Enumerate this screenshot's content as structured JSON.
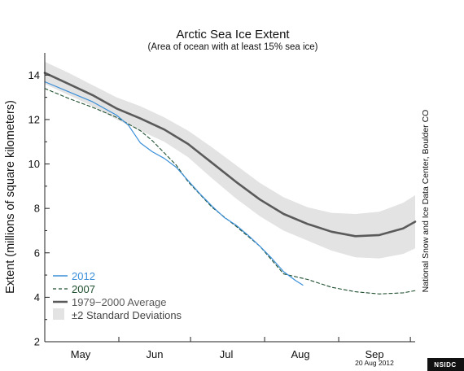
{
  "chart_data": {
    "type": "line",
    "title": "Arctic Sea Ice Extent",
    "subtitle": "(Area of ocean with at least 15% sea ice)",
    "ylabel": "Extent (millions of square kilometers)",
    "xlabel": "",
    "ylim": [
      2,
      15
    ],
    "xlim": [
      0,
      155
    ],
    "y_ticks": [
      2,
      4,
      6,
      8,
      10,
      12,
      14
    ],
    "x_tick_labels": [
      {
        "label": "May",
        "x": 15
      },
      {
        "label": "Jun",
        "x": 46
      },
      {
        "label": "Jul",
        "x": 76
      },
      {
        "label": "Aug",
        "x": 107
      },
      {
        "label": "Sep",
        "x": 138
      }
    ],
    "x_month_boundaries": [
      0,
      31,
      61,
      92,
      123,
      153
    ],
    "x_units": "days since May 1",
    "grid": false,
    "legend_position": "lower-left",
    "legend": [
      {
        "label": "2012",
        "color": "#3a8fd9",
        "style": "solid"
      },
      {
        "label": "2007",
        "color": "#1f4f2f",
        "style": "dashed"
      },
      {
        "label": "1979−2000 Average",
        "color": "#5a5a5a",
        "style": "thick"
      },
      {
        "label": "±2 Standard Deviations",
        "color": "#e3e3e3",
        "style": "band"
      }
    ],
    "series": [
      {
        "name": "1979−2000 Average",
        "color": "#5a5a5a",
        "x": [
          0,
          10,
          20,
          30,
          40,
          50,
          60,
          70,
          80,
          90,
          100,
          110,
          120,
          130,
          140,
          150,
          155
        ],
        "values": [
          14.1,
          13.6,
          13.1,
          12.5,
          12.05,
          11.55,
          10.9,
          10.05,
          9.2,
          8.4,
          7.75,
          7.3,
          6.95,
          6.75,
          6.8,
          7.1,
          7.4
        ]
      },
      {
        "name": "±2 Standard Deviations",
        "color": "#e3e3e3",
        "x": [
          0,
          10,
          20,
          30,
          40,
          50,
          60,
          70,
          80,
          90,
          100,
          110,
          120,
          130,
          140,
          150,
          155
        ],
        "upper": [
          14.6,
          14.1,
          13.55,
          13.0,
          12.6,
          12.1,
          11.5,
          10.75,
          9.95,
          9.15,
          8.5,
          8.05,
          7.8,
          7.75,
          7.85,
          8.25,
          8.6
        ],
        "lower": [
          13.6,
          13.1,
          12.6,
          12.0,
          11.5,
          11.0,
          10.3,
          9.35,
          8.45,
          7.65,
          7.0,
          6.55,
          6.1,
          5.8,
          5.75,
          5.95,
          6.2
        ]
      },
      {
        "name": "2007",
        "color": "#1f4f2f",
        "x": [
          0,
          10,
          20,
          30,
          40,
          45,
          50,
          55,
          60,
          70,
          80,
          90,
          100,
          110,
          120,
          130,
          140,
          150,
          155
        ],
        "values": [
          13.4,
          12.95,
          12.55,
          12.1,
          11.5,
          11.05,
          10.5,
          9.95,
          9.2,
          8.05,
          7.2,
          6.3,
          5.05,
          4.8,
          4.45,
          4.25,
          4.15,
          4.2,
          4.3
        ]
      },
      {
        "name": "2012",
        "color": "#3a8fd9",
        "x": [
          0,
          10,
          20,
          30,
          35,
          40,
          45,
          50,
          55,
          60,
          65,
          70,
          75,
          80,
          85,
          90,
          95,
          100,
          105,
          108
        ],
        "values": [
          13.7,
          13.25,
          12.8,
          12.2,
          11.75,
          10.95,
          10.55,
          10.25,
          9.85,
          9.25,
          8.65,
          8.1,
          7.6,
          7.25,
          6.8,
          6.3,
          5.75,
          5.15,
          4.75,
          4.55
        ]
      }
    ]
  },
  "credit": "National Snow and Ice Data Center, Boulder CO",
  "date_stamp": "20 Aug 2012",
  "badge": "NSIDC"
}
